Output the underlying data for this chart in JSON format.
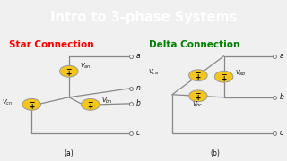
{
  "title": "Intro to 3-phase Systems",
  "title_bg": "#1565C0",
  "title_color": "white",
  "star_label": "Star Connection",
  "star_color": "#FF0000",
  "delta_label": "Delta Connection",
  "delta_color": "#008000",
  "bg_color": "#F0F0F0",
  "circuit_line_color": "#888888",
  "circle_fill": "#F5C518",
  "circle_edge": "#999999",
  "terminal_color": "#777777",
  "label_color": "#111111",
  "title_fontsize": 10.5,
  "section_fontsize": 7.5,
  "label_fontsize": 5.5,
  "small_fontsize": 5.0
}
